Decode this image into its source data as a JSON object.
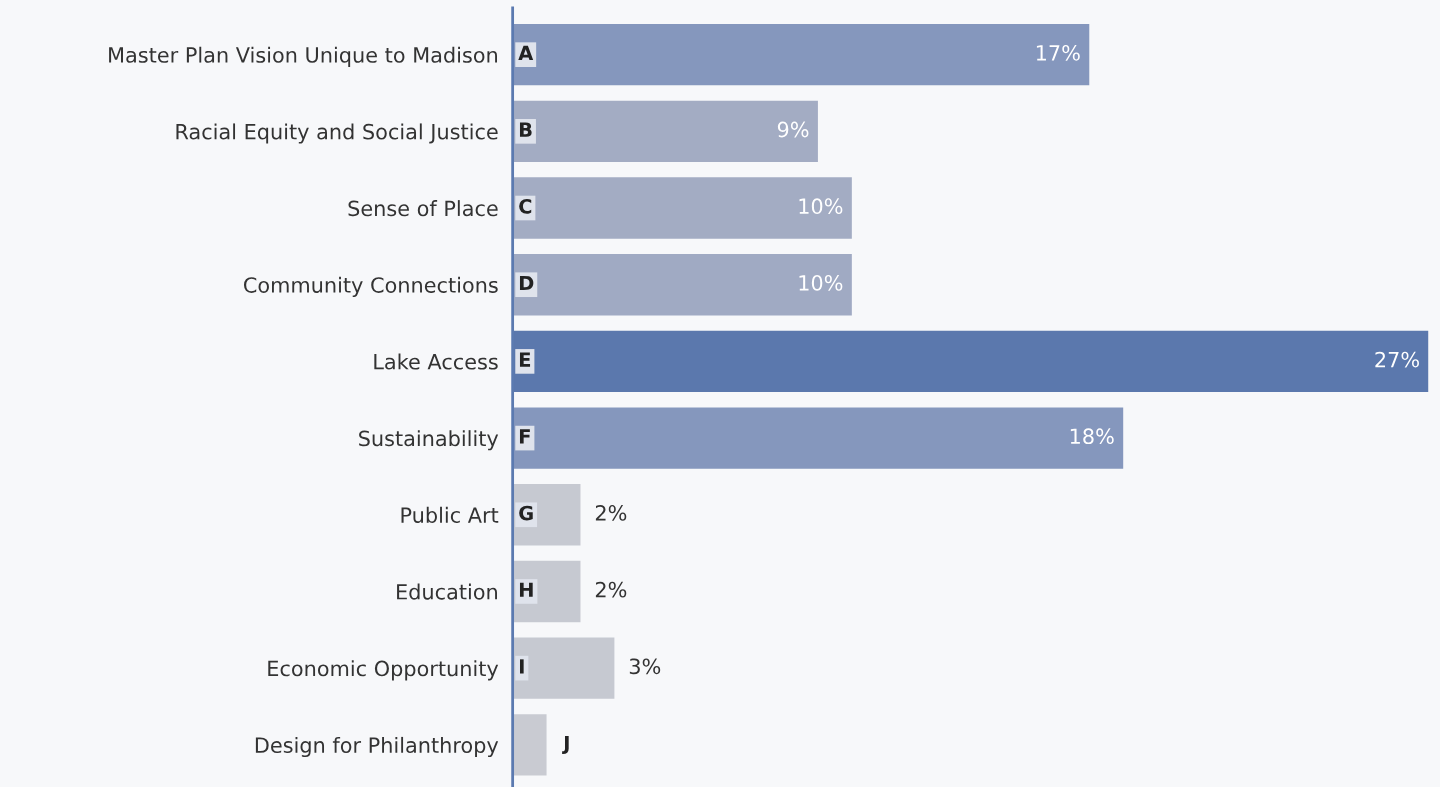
{
  "chart_data": {
    "type": "bar",
    "orientation": "horizontal",
    "categories": [
      "Master Plan Vision Unique to Madison",
      "Racial Equity and Social Justice",
      "Sense of Place",
      "Community Connections",
      "Lake Access",
      "Sustainability",
      "Public Art",
      "Education",
      "Economic Opportunity",
      "Design for Philanthropy"
    ],
    "values": [
      17,
      9,
      10,
      10,
      27,
      18,
      2,
      2,
      3,
      1
    ],
    "colors": [
      "#8597bd",
      "#a3acc3",
      "#a3acc3",
      "#a0aac3",
      "#5b78ad",
      "#8597bd",
      "#c6c9d1",
      "#c6c9d1",
      "#c6c9d1",
      "#c9cbd2"
    ],
    "value_labels": [
      "17%",
      "9%",
      "10%",
      "10%",
      "27%",
      "18%",
      "2%",
      "2%",
      "3%",
      null
    ],
    "annotations": [
      "A",
      "B",
      "C",
      "D",
      "E",
      "F",
      "G",
      "H",
      "I",
      "J"
    ],
    "grid": false,
    "legend": false
  }
}
